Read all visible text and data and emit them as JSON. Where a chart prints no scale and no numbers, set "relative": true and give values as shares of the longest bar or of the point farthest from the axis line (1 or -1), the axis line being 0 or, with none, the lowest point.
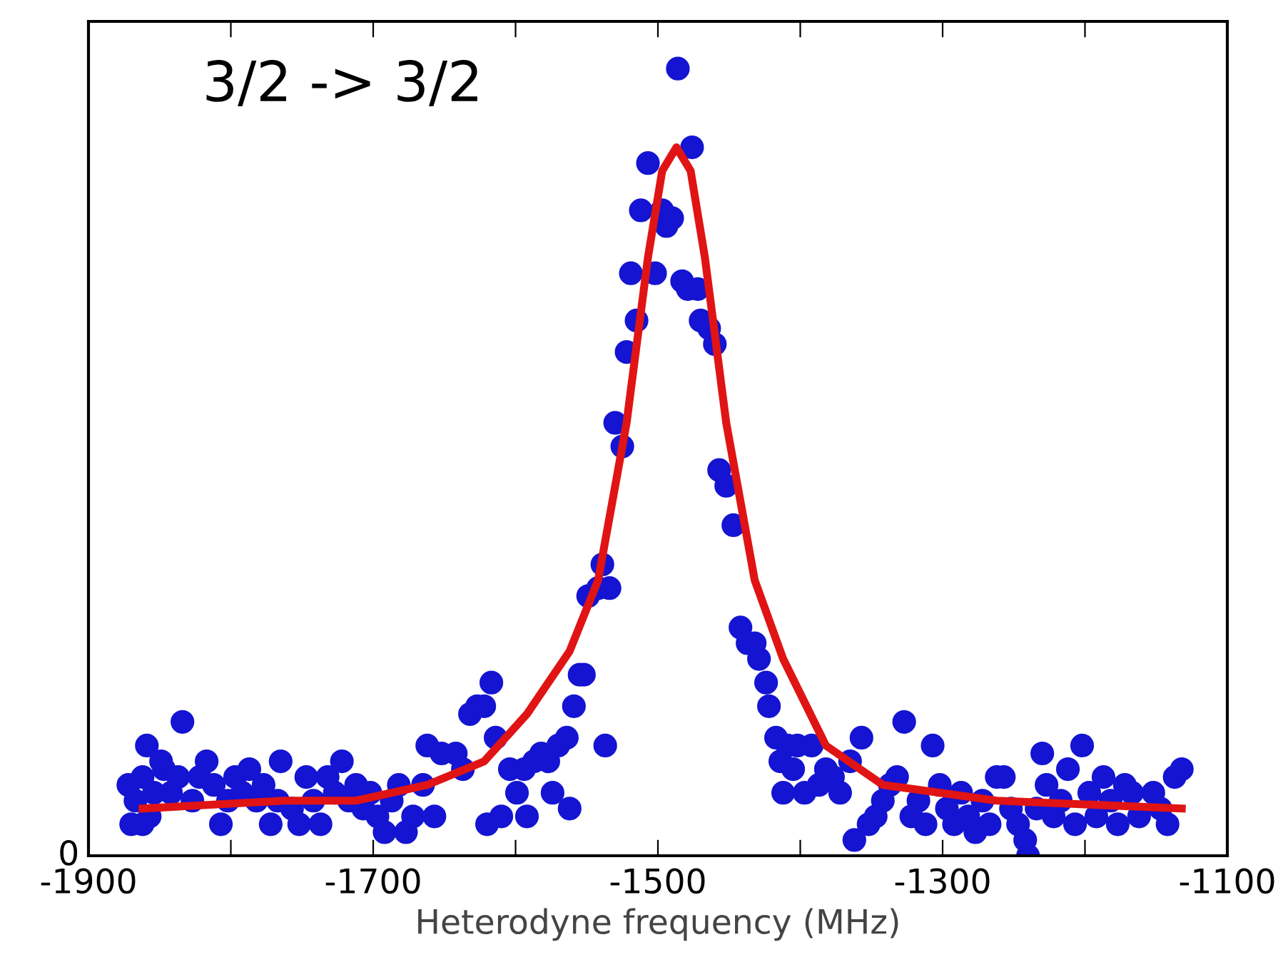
{
  "chart_data": {
    "type": "scatter",
    "relative": true,
    "xlabel": "Heterodyne frequency (MHz)",
    "annotations": [
      "3/2 -> 3/2",
      "0"
    ],
    "xlim": [
      -1900,
      -1100
    ],
    "xticks": [
      -1900,
      {
        "value": -1800,
        "label": null
      },
      -1700,
      {
        "value": -1600,
        "label": null
      },
      -1500,
      {
        "value": -1400,
        "label": null
      },
      -1300,
      {
        "value": -1200,
        "label": null
      },
      -1100
    ],
    "grid": false,
    "series": [
      {
        "color": "#1414d2",
        "marker": "circle",
        "x": [
          -1872,
          -1867,
          -1862,
          -1857,
          -1870,
          -1862,
          -1854,
          -1847,
          -1859,
          -1849,
          -1842,
          -1837,
          -1834,
          -1827,
          -1822,
          -1817,
          -1812,
          -1807,
          -1802,
          -1797,
          -1792,
          -1787,
          -1782,
          -1777,
          -1772,
          -1767,
          -1765,
          -1757,
          -1752,
          -1747,
          -1742,
          -1737,
          -1732,
          -1727,
          -1722,
          -1717,
          -1712,
          -1707,
          -1702,
          -1697,
          -1692,
          -1687,
          -1682,
          -1677,
          -1672,
          -1665,
          -1662,
          -1657,
          -1652,
          -1642,
          -1637,
          -1632,
          -1627,
          -1622,
          -1617,
          -1614,
          -1620,
          -1610,
          -1604,
          -1599,
          -1594,
          -1592,
          -1587,
          -1582,
          -1577,
          -1574,
          -1570,
          -1564,
          -1562,
          -1559,
          -1555,
          -1552,
          -1549,
          -1542,
          -1539,
          -1534,
          -1537,
          -1530,
          -1525,
          -1522,
          -1519,
          -1515,
          -1512,
          -1507,
          -1502,
          -1497,
          -1494,
          -1490,
          -1486,
          -1483,
          -1479,
          -1476,
          -1472,
          -1470,
          -1464,
          -1460,
          -1457,
          -1452,
          -1447,
          -1442,
          -1437,
          -1432,
          -1429,
          -1424,
          -1422,
          -1417,
          -1414,
          -1412,
          -1409,
          -1405,
          -1402,
          -1397,
          -1392,
          -1387,
          -1382,
          -1377,
          -1372,
          -1365,
          -1362,
          -1357,
          -1352,
          -1347,
          -1342,
          -1337,
          -1332,
          -1327,
          -1322,
          -1317,
          -1312,
          -1307,
          -1302,
          -1297,
          -1292,
          -1287,
          -1282,
          -1277,
          -1272,
          -1267,
          -1262,
          -1257,
          -1252,
          -1247,
          -1242,
          -1240,
          -1234,
          -1230,
          -1227,
          -1222,
          -1217,
          -1212,
          -1207,
          -1202,
          -1197,
          -1192,
          -1187,
          -1182,
          -1177,
          -1172,
          -1167,
          -1162,
          -1152,
          -1147,
          -1142,
          -1137,
          -1132
        ],
        "values": [
          0.09,
          0.07,
          0.1,
          0.05,
          0.04,
          0.04,
          0.08,
          0.11,
          0.14,
          0.12,
          0.08,
          0.1,
          0.17,
          0.07,
          0.1,
          0.12,
          0.09,
          0.04,
          0.07,
          0.1,
          0.08,
          0.11,
          0.07,
          0.09,
          0.04,
          0.07,
          0.12,
          0.06,
          0.04,
          0.1,
          0.07,
          0.04,
          0.1,
          0.08,
          0.12,
          0.07,
          0.09,
          0.06,
          0.08,
          0.05,
          0.03,
          0.07,
          0.09,
          0.03,
          0.05,
          0.09,
          0.14,
          0.05,
          0.13,
          0.13,
          0.11,
          0.18,
          0.19,
          0.19,
          0.22,
          0.15,
          0.04,
          0.05,
          0.11,
          0.08,
          0.11,
          0.05,
          0.12,
          0.13,
          0.12,
          0.08,
          0.14,
          0.15,
          0.06,
          0.19,
          0.23,
          0.23,
          0.33,
          0.34,
          0.37,
          0.34,
          0.14,
          0.55,
          0.52,
          0.64,
          0.74,
          0.68,
          0.82,
          0.88,
          0.74,
          0.82,
          0.8,
          0.81,
          1.0,
          0.73,
          0.72,
          0.9,
          0.72,
          0.68,
          0.67,
          0.65,
          0.49,
          0.47,
          0.42,
          0.29,
          0.27,
          0.27,
          0.25,
          0.22,
          0.19,
          0.15,
          0.12,
          0.08,
          0.14,
          0.11,
          0.14,
          0.08,
          0.14,
          0.09,
          0.11,
          0.1,
          0.08,
          0.12,
          0.02,
          0.15,
          0.04,
          0.05,
          0.07,
          0.09,
          0.1,
          0.17,
          0.05,
          0.07,
          0.04,
          0.14,
          0.09,
          0.06,
          0.04,
          0.08,
          0.05,
          0.03,
          0.07,
          0.04,
          0.1,
          0.1,
          0.06,
          0.04,
          0.02,
          0.0,
          0.06,
          0.13,
          0.09,
          0.05,
          0.07,
          0.11,
          0.04,
          0.14,
          0.08,
          0.05,
          0.1,
          0.07,
          0.04,
          0.09,
          0.08,
          0.05,
          0.08,
          0.06,
          0.04,
          0.1,
          0.11
        ]
      },
      {
        "type": "line",
        "color": "#e01414",
        "marker": "none",
        "line_style": "solid",
        "x": [
          -1862,
          -1762,
          -1712,
          -1662,
          -1622,
          -1592,
          -1562,
          -1542,
          -1522,
          -1507,
          -1497,
          -1487,
          -1477,
          -1467,
          -1452,
          -1432,
          -1412,
          -1382,
          -1342,
          -1262,
          -1132
        ],
        "values": [
          0.06,
          0.07,
          0.07,
          0.09,
          0.12,
          0.18,
          0.26,
          0.35,
          0.55,
          0.76,
          0.87,
          0.9,
          0.87,
          0.76,
          0.55,
          0.35,
          0.25,
          0.14,
          0.09,
          0.07,
          0.06
        ]
      }
    ]
  }
}
